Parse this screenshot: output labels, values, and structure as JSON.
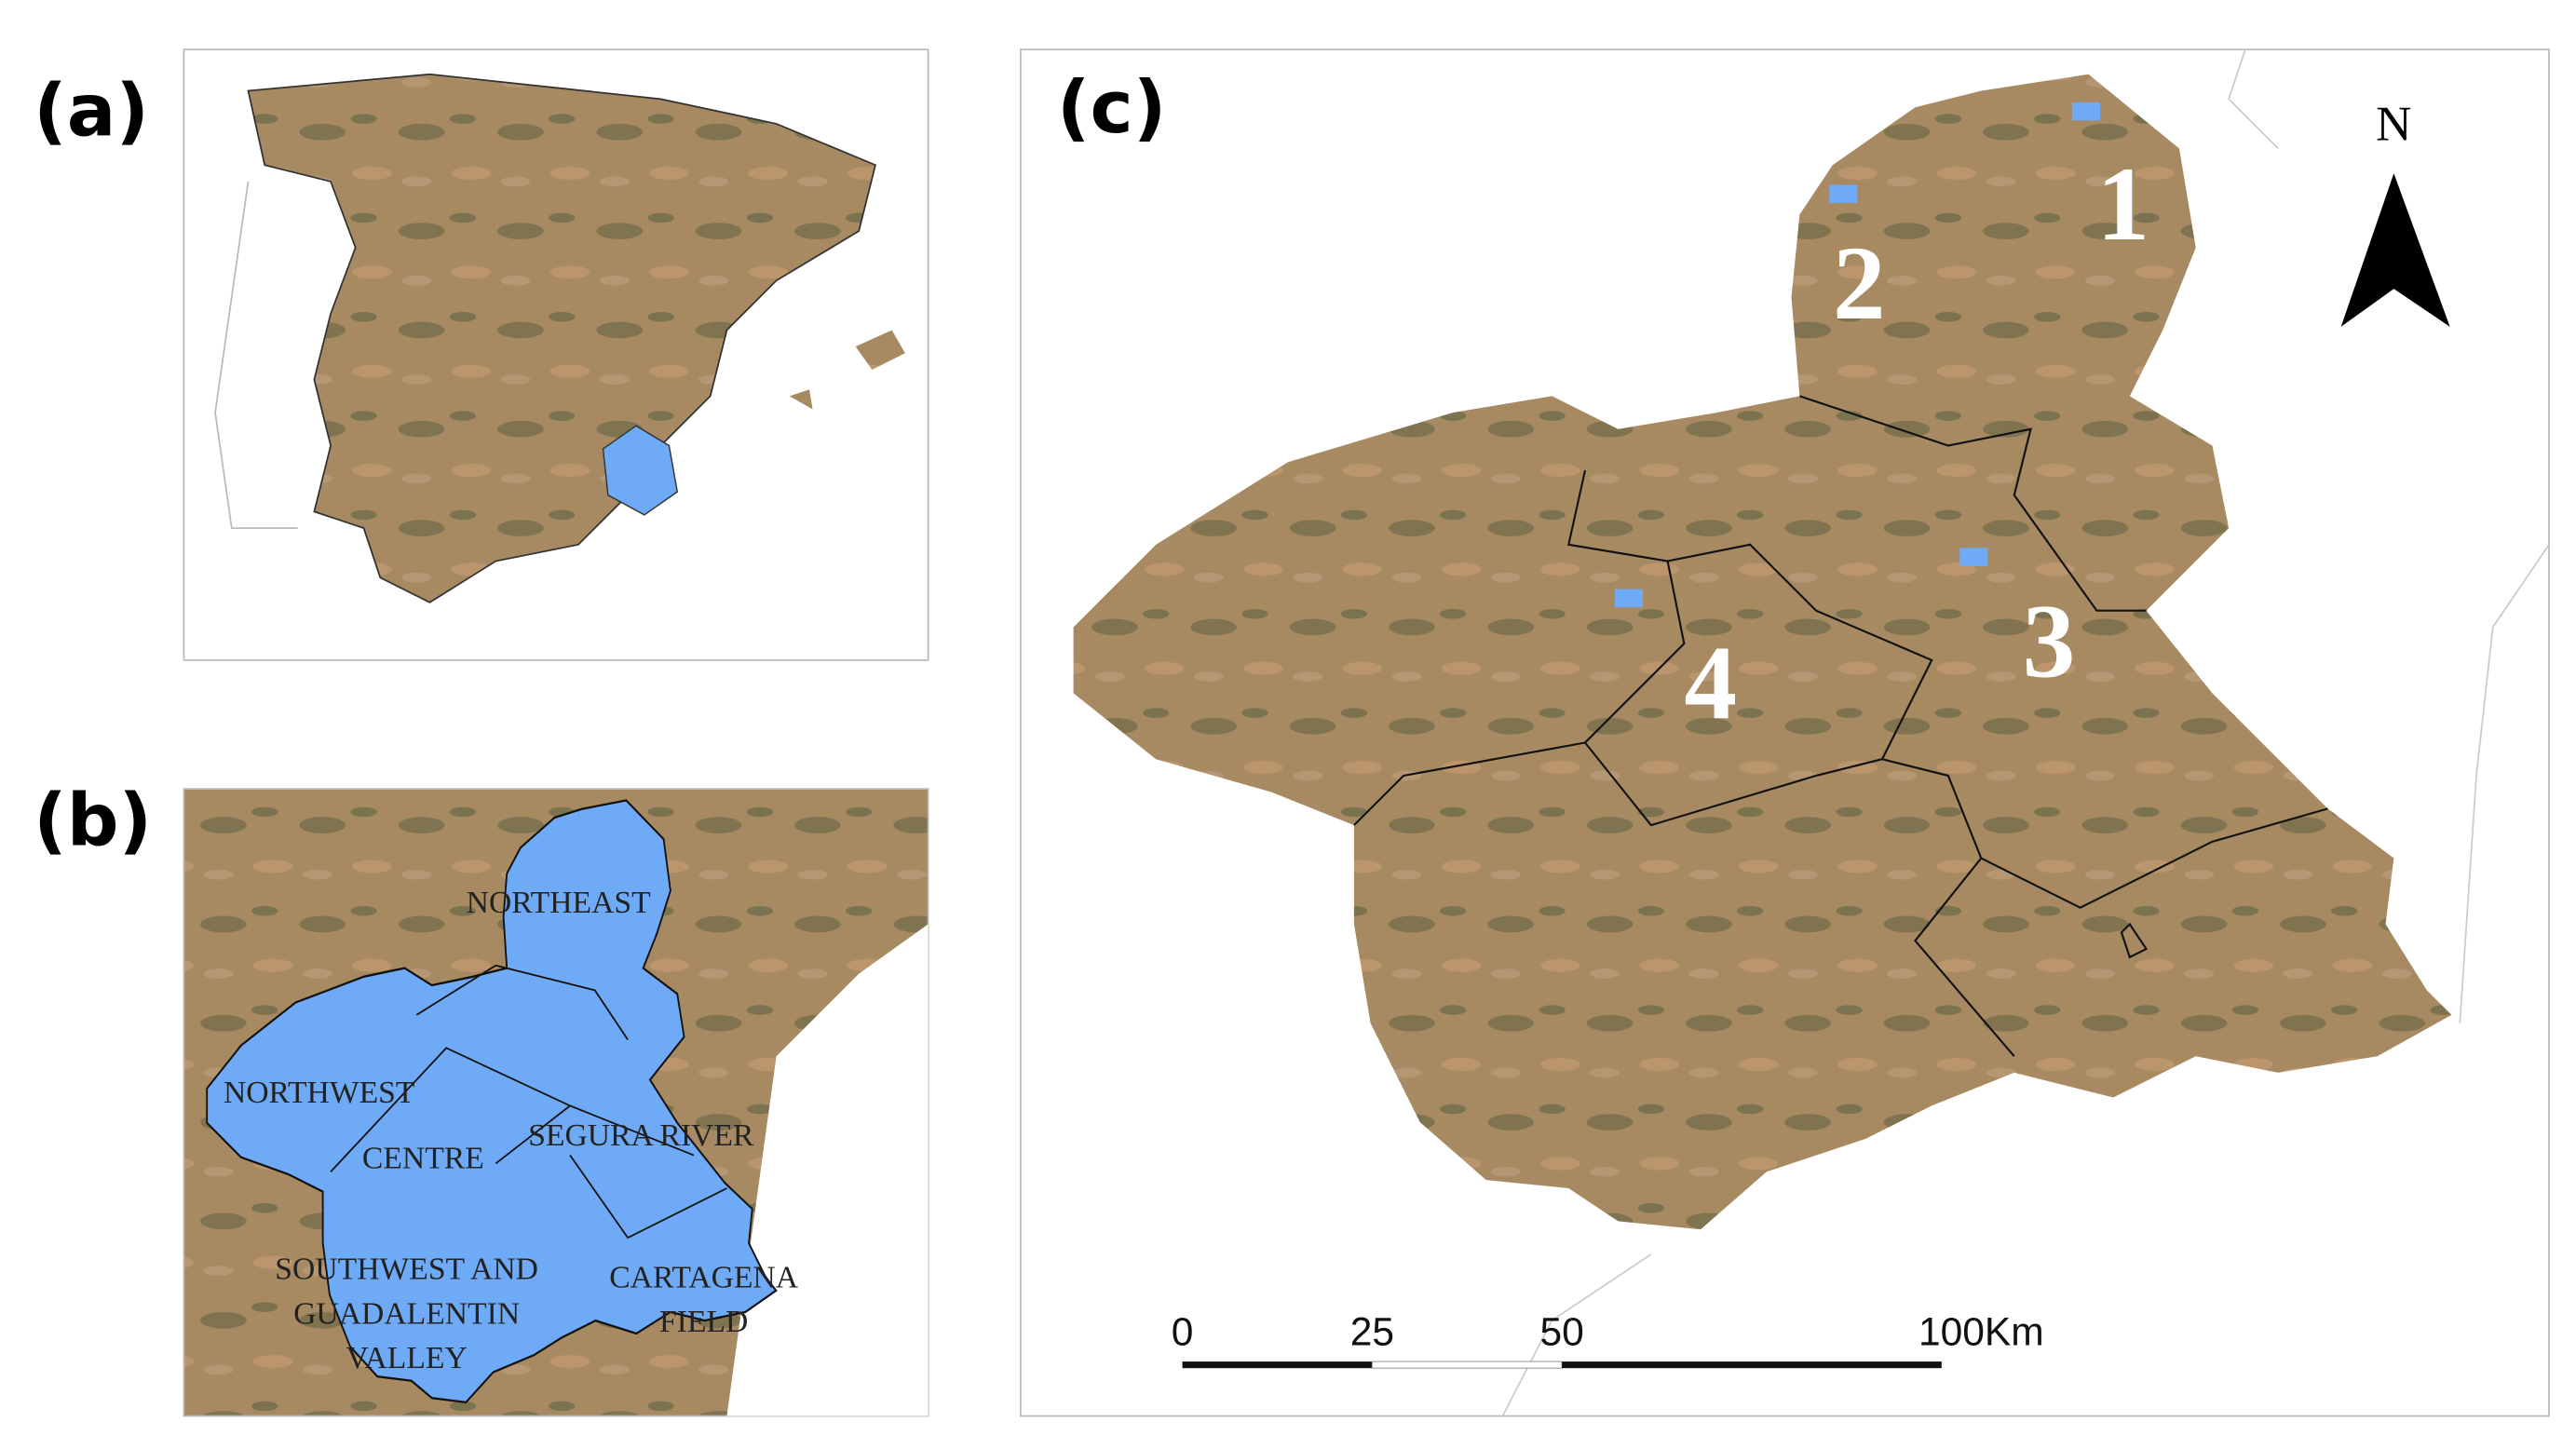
{
  "panels": {
    "a": {
      "label": "(a)"
    },
    "b": {
      "label": "(b)",
      "regions": [
        {
          "name": [
            "NORTHEAST"
          ]
        },
        {
          "name": [
            "NORTHWEST"
          ]
        },
        {
          "name": [
            "CENTRE"
          ]
        },
        {
          "name": [
            "SEGURA RIVER"
          ]
        },
        {
          "name": [
            "SOUTHWEST AND",
            "GUADALENTIN",
            "VALLEY"
          ]
        },
        {
          "name": [
            "CARTAGENA",
            "FIELD"
          ]
        }
      ]
    },
    "c": {
      "label": "(c)",
      "sites": [
        "1",
        "2",
        "3",
        "4"
      ],
      "north": "N",
      "scale_bar": [
        "0",
        "25",
        "50",
        "100Km"
      ]
    }
  }
}
